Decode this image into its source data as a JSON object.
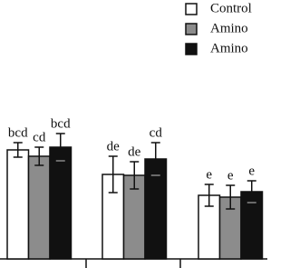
{
  "chart_data": {
    "type": "bar",
    "categories": [
      null,
      null,
      null
    ],
    "ylim": [
      0,
      285
    ],
    "series": [
      {
        "name": "Control",
        "color": "#ffffff",
        "values": [
          120,
          93,
          70
        ],
        "errors": [
          8,
          20,
          12
        ],
        "annotations": [
          "bcd",
          "de",
          "e"
        ]
      },
      {
        "name": "Amino",
        "color": "#8c8c8c",
        "values": [
          113,
          92,
          68
        ],
        "errors": [
          10,
          15,
          13
        ],
        "annotations": [
          "cd",
          "de",
          "e"
        ]
      },
      {
        "name": "Amino",
        "color": "#111111",
        "values": [
          123,
          110,
          74
        ],
        "errors": [
          15,
          18,
          12
        ],
        "annotations": [
          "bcd",
          "cd",
          "e"
        ]
      }
    ]
  }
}
